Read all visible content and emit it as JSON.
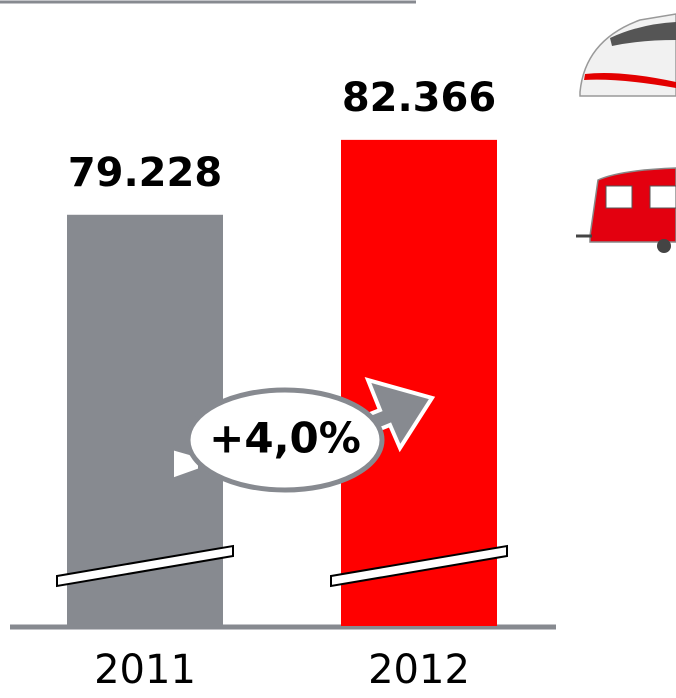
{
  "chart_data": {
    "type": "bar",
    "categories": [
      "2011",
      "2012"
    ],
    "values": [
      79228,
      82366
    ],
    "value_labels": [
      "79.228",
      "82.366"
    ],
    "colors": [
      "#878a90",
      "#ff0000"
    ],
    "ylim": [
      62000,
      85000
    ],
    "annotation": "+4,0%"
  }
}
